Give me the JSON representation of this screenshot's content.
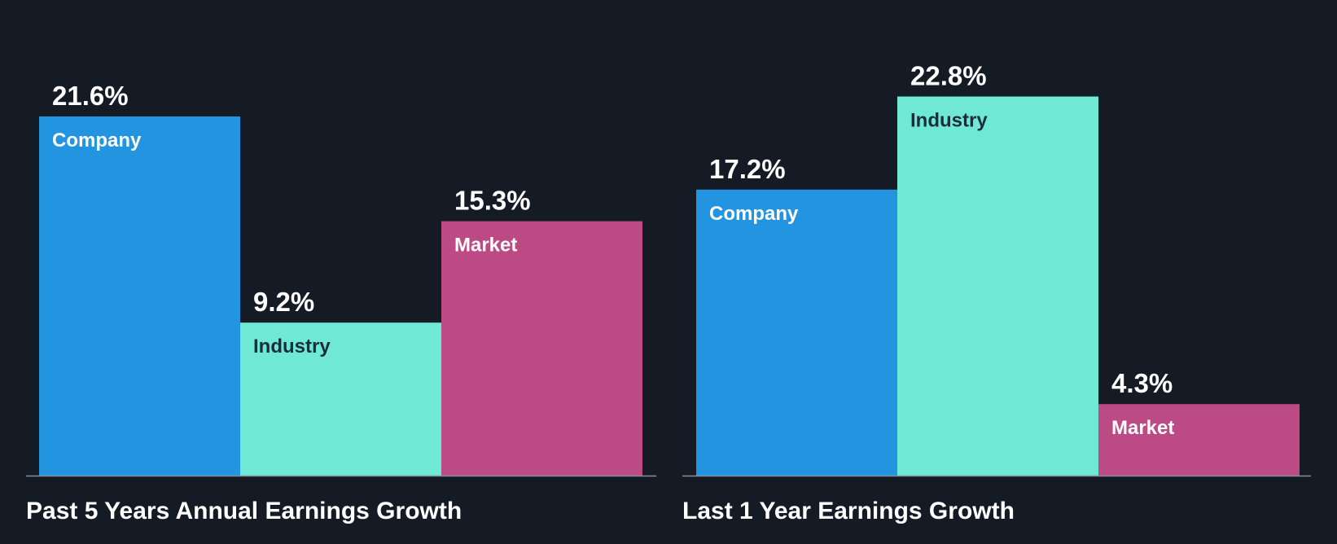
{
  "theme": {
    "background": "#151b24",
    "axis_color": "#8a8f98",
    "title_color": "#ffffff",
    "value_label_color": "#ffffff",
    "category_colors": {
      "Company": "#2394df",
      "Industry": "#6fe8d6",
      "Market": "#bb4a85"
    },
    "category_label_colors": {
      "Company": "#ffffff",
      "Industry": "#1a2e3a",
      "Market": "#ffffff"
    }
  },
  "chart_data": [
    {
      "type": "bar",
      "title": "Past 5 Years Annual Earnings Growth",
      "categories": [
        "Company",
        "Industry",
        "Market"
      ],
      "values": [
        21.6,
        9.2,
        15.3
      ],
      "value_labels": [
        "21.6%",
        "9.2%",
        "15.3%"
      ],
      "ylim": [
        0,
        24
      ],
      "grid": false,
      "legend": "none"
    },
    {
      "type": "bar",
      "title": "Last 1 Year Earnings Growth",
      "categories": [
        "Company",
        "Industry",
        "Market"
      ],
      "values": [
        17.2,
        22.8,
        4.3
      ],
      "value_labels": [
        "17.2%",
        "22.8%",
        "4.3%"
      ],
      "ylim": [
        0,
        24
      ],
      "grid": false,
      "legend": "none"
    }
  ]
}
